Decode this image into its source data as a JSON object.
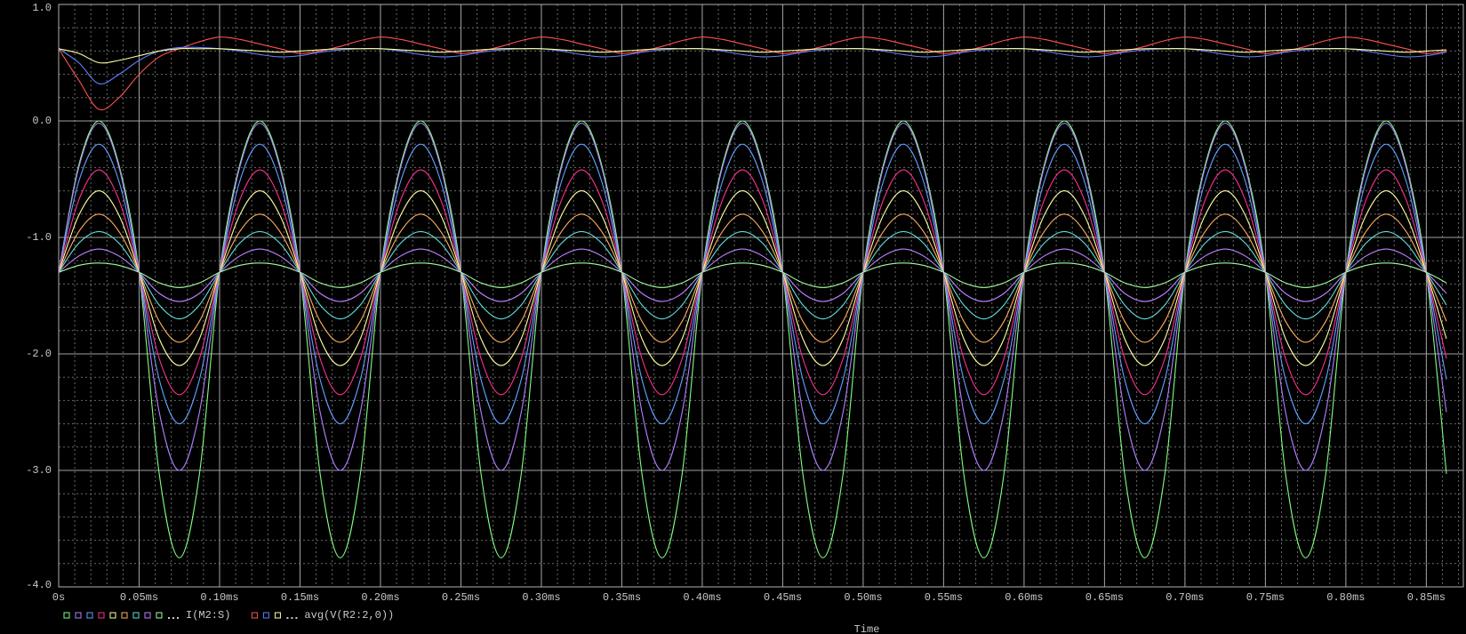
{
  "chart_data": {
    "type": "line",
    "x_label": "Time",
    "xlim": [
      0,
      0.873
    ],
    "ylim": [
      -4,
      1
    ],
    "grid": true,
    "background": "#000000",
    "xticks": [
      {
        "value": 0,
        "label": "0s"
      },
      {
        "value": 0.05,
        "label": "0.05ms"
      },
      {
        "value": 0.1,
        "label": "0.10ms"
      },
      {
        "value": 0.15,
        "label": "0.15ms"
      },
      {
        "value": 0.2,
        "label": "0.20ms"
      },
      {
        "value": 0.25,
        "label": "0.25ms"
      },
      {
        "value": 0.3,
        "label": "0.30ms"
      },
      {
        "value": 0.35,
        "label": "0.35ms"
      },
      {
        "value": 0.4,
        "label": "0.40ms"
      },
      {
        "value": 0.45,
        "label": "0.45ms"
      },
      {
        "value": 0.5,
        "label": "0.50ms"
      },
      {
        "value": 0.55,
        "label": "0.55ms"
      },
      {
        "value": 0.6,
        "label": "0.60ms"
      },
      {
        "value": 0.65,
        "label": "0.65ms"
      },
      {
        "value": 0.7,
        "label": "0.70ms"
      },
      {
        "value": 0.75,
        "label": "0.75ms"
      },
      {
        "value": 0.8,
        "label": "0.80ms"
      },
      {
        "value": 0.85,
        "label": "0.85ms"
      }
    ],
    "yticks": [
      {
        "value": 1,
        "label": "1.0"
      },
      {
        "value": 0,
        "label": "0.0"
      },
      {
        "value": -1,
        "label": "-1.0"
      },
      {
        "value": -2,
        "label": "-2.0"
      },
      {
        "value": -3,
        "label": "-3.0"
      },
      {
        "value": -4,
        "label": "-4.0"
      }
    ],
    "x": [
      0,
      0.0125,
      0.025,
      0.0375,
      0.05,
      0.0625,
      0.075,
      0.0875,
      0.1,
      0.1125,
      0.125,
      0.1375,
      0.15,
      0.1625,
      0.175,
      0.1875,
      0.2,
      0.2125,
      0.225,
      0.2375,
      0.25,
      0.2625,
      0.275,
      0.2875,
      0.3,
      0.3125,
      0.325,
      0.3375,
      0.35,
      0.3625,
      0.375,
      0.3875,
      0.4,
      0.4125,
      0.425,
      0.4375,
      0.45,
      0.4625,
      0.475,
      0.4875,
      0.5,
      0.5125,
      0.525,
      0.5375,
      0.55,
      0.5625,
      0.575,
      0.5875,
      0.6,
      0.6125,
      0.625,
      0.6375,
      0.65,
      0.6625,
      0.675,
      0.6875,
      0.7,
      0.7125,
      0.725,
      0.7375,
      0.75,
      0.7625,
      0.775,
      0.7875,
      0.8,
      0.8125,
      0.825,
      0.8375,
      0.85,
      0.8625
    ],
    "series": [
      {
        "name": "I(M2:S)",
        "color": "#7fff7f",
        "values": [
          -1.3,
          -0.38,
          0,
          -0.38,
          -1.3,
          -3.03,
          -3.75,
          -3.03,
          -1.3,
          -0.38,
          0,
          -0.38,
          -1.3,
          -3.03,
          -3.75,
          -3.03,
          -1.3,
          -0.38,
          0,
          -0.38,
          -1.3,
          -3.03,
          -3.75,
          -3.03,
          -1.3,
          -0.38,
          0,
          -0.38,
          -1.3,
          -3.03,
          -3.75,
          -3.03,
          -1.3,
          -0.38,
          0,
          -0.38,
          -1.3,
          -3.03,
          -3.75,
          -3.03,
          -1.3,
          -0.38,
          0,
          -0.38,
          -1.3,
          -3.03,
          -3.75,
          -3.03,
          -1.3,
          -0.38,
          0,
          -0.38,
          -1.3,
          -3.03,
          -3.75,
          -3.03,
          -1.3,
          -0.38,
          0,
          -0.38,
          -1.3,
          -3.03,
          -3.75,
          -3.03,
          -1.3,
          -0.38,
          0,
          -0.38,
          -1.3,
          -3.03
        ]
      },
      {
        "name": "I(M2:S)",
        "color": "#b080ff",
        "values": [
          -1.3,
          -0.4,
          -0.02,
          -0.4,
          -1.3,
          -2.5,
          -3.0,
          -2.5,
          -1.3,
          -0.4,
          -0.02,
          -0.4,
          -1.3,
          -2.5,
          -3.0,
          -2.5,
          -1.3,
          -0.4,
          -0.02,
          -0.4,
          -1.3,
          -2.5,
          -3.0,
          -2.5,
          -1.3,
          -0.4,
          -0.02,
          -0.4,
          -1.3,
          -2.5,
          -3.0,
          -2.5,
          -1.3,
          -0.4,
          -0.02,
          -0.4,
          -1.3,
          -2.5,
          -3.0,
          -2.5,
          -1.3,
          -0.4,
          -0.02,
          -0.4,
          -1.3,
          -2.5,
          -3.0,
          -2.5,
          -1.3,
          -0.4,
          -0.02,
          -0.4,
          -1.3,
          -2.5,
          -3.0,
          -2.5,
          -1.3,
          -0.4,
          -0.02,
          -0.4,
          -1.3,
          -2.5,
          -3.0,
          -2.5,
          -1.3,
          -0.4,
          -0.02,
          -0.4,
          -1.3,
          -2.5
        ]
      },
      {
        "name": "I(M2:S)",
        "color": "#60a0ff",
        "values": [
          -1.3,
          -0.52,
          -0.2,
          -0.52,
          -1.3,
          -2.22,
          -2.6,
          -2.22,
          -1.3,
          -0.52,
          -0.2,
          -0.52,
          -1.3,
          -2.22,
          -2.6,
          -2.22,
          -1.3,
          -0.52,
          -0.2,
          -0.52,
          -1.3,
          -2.22,
          -2.6,
          -2.22,
          -1.3,
          -0.52,
          -0.2,
          -0.52,
          -1.3,
          -2.22,
          -2.6,
          -2.22,
          -1.3,
          -0.52,
          -0.2,
          -0.52,
          -1.3,
          -2.22,
          -2.6,
          -2.22,
          -1.3,
          -0.52,
          -0.2,
          -0.52,
          -1.3,
          -2.22,
          -2.6,
          -2.22,
          -1.3,
          -0.52,
          -0.2,
          -0.52,
          -1.3,
          -2.22,
          -2.6,
          -2.22,
          -1.3,
          -0.52,
          -0.2,
          -0.52,
          -1.3,
          -2.22,
          -2.6,
          -2.22,
          -1.3,
          -0.52,
          -0.2,
          -0.52,
          -1.3,
          -2.22
        ]
      },
      {
        "name": "I(M2:S)",
        "color": "#ff3090",
        "values": [
          -1.3,
          -0.68,
          -0.42,
          -0.68,
          -1.3,
          -2.04,
          -2.35,
          -2.04,
          -1.3,
          -0.68,
          -0.42,
          -0.68,
          -1.3,
          -2.04,
          -2.35,
          -2.04,
          -1.3,
          -0.68,
          -0.42,
          -0.68,
          -1.3,
          -2.04,
          -2.35,
          -2.04,
          -1.3,
          -0.68,
          -0.42,
          -0.68,
          -1.3,
          -2.04,
          -2.35,
          -2.04,
          -1.3,
          -0.68,
          -0.42,
          -0.68,
          -1.3,
          -2.04,
          -2.35,
          -2.04,
          -1.3,
          -0.68,
          -0.42,
          -0.68,
          -1.3,
          -2.04,
          -2.35,
          -2.04,
          -1.3,
          -0.68,
          -0.42,
          -0.68,
          -1.3,
          -2.04,
          -2.35,
          -2.04,
          -1.3,
          -0.68,
          -0.42,
          -0.68,
          -1.3,
          -2.04,
          -2.35,
          -2.04,
          -1.3,
          -0.68,
          -0.42,
          -0.68,
          -1.3,
          -2.04
        ]
      },
      {
        "name": "I(M2:S)",
        "color": "#ffffa0",
        "values": [
          -1.3,
          -0.81,
          -0.6,
          -0.81,
          -1.3,
          -1.87,
          -2.1,
          -1.87,
          -1.3,
          -0.81,
          -0.6,
          -0.81,
          -1.3,
          -1.87,
          -2.1,
          -1.87,
          -1.3,
          -0.81,
          -0.6,
          -0.81,
          -1.3,
          -1.87,
          -2.1,
          -1.87,
          -1.3,
          -0.81,
          -0.6,
          -0.81,
          -1.3,
          -1.87,
          -2.1,
          -1.87,
          -1.3,
          -0.81,
          -0.6,
          -0.81,
          -1.3,
          -1.87,
          -2.1,
          -1.87,
          -1.3,
          -0.81,
          -0.6,
          -0.81,
          -1.3,
          -1.87,
          -2.1,
          -1.87,
          -1.3,
          -0.81,
          -0.6,
          -0.81,
          -1.3,
          -1.87,
          -2.1,
          -1.87,
          -1.3,
          -0.81,
          -0.6,
          -0.81,
          -1.3,
          -1.87,
          -2.1,
          -1.87,
          -1.3,
          -0.81,
          -0.6,
          -0.81,
          -1.3,
          -1.87
        ]
      },
      {
        "name": "I(M2:S)",
        "color": "#ffb060",
        "values": [
          -1.3,
          -0.95,
          -0.8,
          -0.95,
          -1.3,
          -1.72,
          -1.9,
          -1.72,
          -1.3,
          -0.95,
          -0.8,
          -0.95,
          -1.3,
          -1.72,
          -1.9,
          -1.72,
          -1.3,
          -0.95,
          -0.8,
          -0.95,
          -1.3,
          -1.72,
          -1.9,
          -1.72,
          -1.3,
          -0.95,
          -0.8,
          -0.95,
          -1.3,
          -1.72,
          -1.9,
          -1.72,
          -1.3,
          -0.95,
          -0.8,
          -0.95,
          -1.3,
          -1.72,
          -1.9,
          -1.72,
          -1.3,
          -0.95,
          -0.8,
          -0.95,
          -1.3,
          -1.72,
          -1.9,
          -1.72,
          -1.3,
          -0.95,
          -0.8,
          -0.95,
          -1.3,
          -1.72,
          -1.9,
          -1.72,
          -1.3,
          -0.95,
          -0.8,
          -0.95,
          -1.3,
          -1.72,
          -1.9,
          -1.72,
          -1.3,
          -0.95,
          -0.8,
          -0.95,
          -1.3,
          -1.72
        ]
      },
      {
        "name": "I(M2:S)",
        "color": "#60e0e0",
        "values": [
          -1.3,
          -1.05,
          -0.95,
          -1.05,
          -1.3,
          -1.58,
          -1.7,
          -1.58,
          -1.3,
          -1.05,
          -0.95,
          -1.05,
          -1.3,
          -1.58,
          -1.7,
          -1.58,
          -1.3,
          -1.05,
          -0.95,
          -1.05,
          -1.3,
          -1.58,
          -1.7,
          -1.58,
          -1.3,
          -1.05,
          -0.95,
          -1.05,
          -1.3,
          -1.58,
          -1.7,
          -1.58,
          -1.3,
          -1.05,
          -0.95,
          -1.05,
          -1.3,
          -1.58,
          -1.7,
          -1.58,
          -1.3,
          -1.05,
          -0.95,
          -1.05,
          -1.3,
          -1.58,
          -1.7,
          -1.58,
          -1.3,
          -1.05,
          -0.95,
          -1.05,
          -1.3,
          -1.58,
          -1.7,
          -1.58,
          -1.3,
          -1.05,
          -0.95,
          -1.05,
          -1.3,
          -1.58,
          -1.7,
          -1.58,
          -1.3,
          -1.05,
          -0.95,
          -1.05,
          -1.3,
          -1.58
        ]
      },
      {
        "name": "I(M2:S)",
        "color": "#c080ff",
        "values": [
          -1.3,
          -1.16,
          -1.1,
          -1.16,
          -1.3,
          -1.48,
          -1.55,
          -1.48,
          -1.3,
          -1.16,
          -1.1,
          -1.16,
          -1.3,
          -1.48,
          -1.55,
          -1.48,
          -1.3,
          -1.16,
          -1.1,
          -1.16,
          -1.3,
          -1.48,
          -1.55,
          -1.48,
          -1.3,
          -1.16,
          -1.1,
          -1.16,
          -1.3,
          -1.48,
          -1.55,
          -1.48,
          -1.3,
          -1.16,
          -1.1,
          -1.16,
          -1.3,
          -1.48,
          -1.55,
          -1.48,
          -1.3,
          -1.16,
          -1.1,
          -1.16,
          -1.3,
          -1.48,
          -1.55,
          -1.48,
          -1.3,
          -1.16,
          -1.1,
          -1.16,
          -1.3,
          -1.48,
          -1.55,
          -1.48,
          -1.3,
          -1.16,
          -1.1,
          -1.16,
          -1.3,
          -1.48,
          -1.55,
          -1.48,
          -1.3,
          -1.16,
          -1.1,
          -1.16,
          -1.3,
          -1.48
        ]
      },
      {
        "name": "I(M2:S)",
        "color": "#a0ffa0",
        "values": [
          -1.3,
          -1.24,
          -1.22,
          -1.24,
          -1.3,
          -1.39,
          -1.43,
          -1.39,
          -1.3,
          -1.24,
          -1.22,
          -1.24,
          -1.3,
          -1.39,
          -1.43,
          -1.39,
          -1.3,
          -1.24,
          -1.22,
          -1.24,
          -1.3,
          -1.39,
          -1.43,
          -1.39,
          -1.3,
          -1.24,
          -1.22,
          -1.24,
          -1.3,
          -1.39,
          -1.43,
          -1.39,
          -1.3,
          -1.24,
          -1.22,
          -1.24,
          -1.3,
          -1.39,
          -1.43,
          -1.39,
          -1.3,
          -1.24,
          -1.22,
          -1.24,
          -1.3,
          -1.39,
          -1.43,
          -1.39,
          -1.3,
          -1.24,
          -1.22,
          -1.24,
          -1.3,
          -1.39,
          -1.43,
          -1.39,
          -1.3,
          -1.24,
          -1.22,
          -1.24,
          -1.3,
          -1.39,
          -1.43,
          -1.39,
          -1.3,
          -1.24,
          -1.22,
          -1.24,
          -1.3,
          -1.39
        ]
      },
      {
        "name": "avg(V(R2:2,0))",
        "color": "#ff5050",
        "values": [
          0.62,
          0.35,
          0.1,
          0.2,
          0.4,
          0.55,
          0.62,
          0.68,
          0.72,
          0.7,
          0.66,
          0.62,
          0.58,
          0.6,
          0.64,
          0.69,
          0.72,
          0.7,
          0.66,
          0.62,
          0.58,
          0.6,
          0.64,
          0.69,
          0.72,
          0.7,
          0.66,
          0.62,
          0.58,
          0.6,
          0.64,
          0.69,
          0.72,
          0.7,
          0.66,
          0.62,
          0.58,
          0.6,
          0.64,
          0.69,
          0.72,
          0.7,
          0.66,
          0.62,
          0.58,
          0.6,
          0.64,
          0.69,
          0.72,
          0.7,
          0.66,
          0.62,
          0.58,
          0.6,
          0.64,
          0.69,
          0.72,
          0.7,
          0.66,
          0.62,
          0.58,
          0.6,
          0.64,
          0.69,
          0.72,
          0.7,
          0.66,
          0.62,
          0.58,
          0.6
        ]
      },
      {
        "name": "avg(V(R2:2,0))",
        "color": "#6080ff",
        "values": [
          0.62,
          0.5,
          0.32,
          0.4,
          0.52,
          0.6,
          0.63,
          0.63,
          0.62,
          0.6,
          0.57,
          0.55,
          0.56,
          0.59,
          0.61,
          0.62,
          0.62,
          0.6,
          0.57,
          0.55,
          0.56,
          0.59,
          0.61,
          0.62,
          0.62,
          0.6,
          0.57,
          0.55,
          0.56,
          0.59,
          0.61,
          0.62,
          0.62,
          0.6,
          0.57,
          0.55,
          0.56,
          0.59,
          0.61,
          0.62,
          0.62,
          0.6,
          0.57,
          0.55,
          0.56,
          0.59,
          0.61,
          0.62,
          0.62,
          0.6,
          0.57,
          0.55,
          0.56,
          0.59,
          0.61,
          0.62,
          0.62,
          0.6,
          0.57,
          0.55,
          0.56,
          0.59,
          0.61,
          0.62,
          0.62,
          0.6,
          0.57,
          0.55,
          0.56,
          0.59
        ]
      },
      {
        "name": "avg(V(R2:2,0))",
        "color": "#ffffa0",
        "values": [
          0.62,
          0.58,
          0.5,
          0.52,
          0.56,
          0.6,
          0.62,
          0.62,
          0.62,
          0.61,
          0.6,
          0.59,
          0.6,
          0.61,
          0.62,
          0.62,
          0.62,
          0.61,
          0.6,
          0.59,
          0.6,
          0.61,
          0.62,
          0.62,
          0.62,
          0.61,
          0.6,
          0.59,
          0.6,
          0.61,
          0.62,
          0.62,
          0.62,
          0.61,
          0.6,
          0.59,
          0.6,
          0.61,
          0.62,
          0.62,
          0.62,
          0.61,
          0.6,
          0.59,
          0.6,
          0.61,
          0.62,
          0.62,
          0.62,
          0.61,
          0.6,
          0.59,
          0.6,
          0.61,
          0.62,
          0.62,
          0.62,
          0.61,
          0.6,
          0.59,
          0.6,
          0.61,
          0.62,
          0.62,
          0.62,
          0.61,
          0.6,
          0.59,
          0.6,
          0.61
        ]
      }
    ]
  }
}
